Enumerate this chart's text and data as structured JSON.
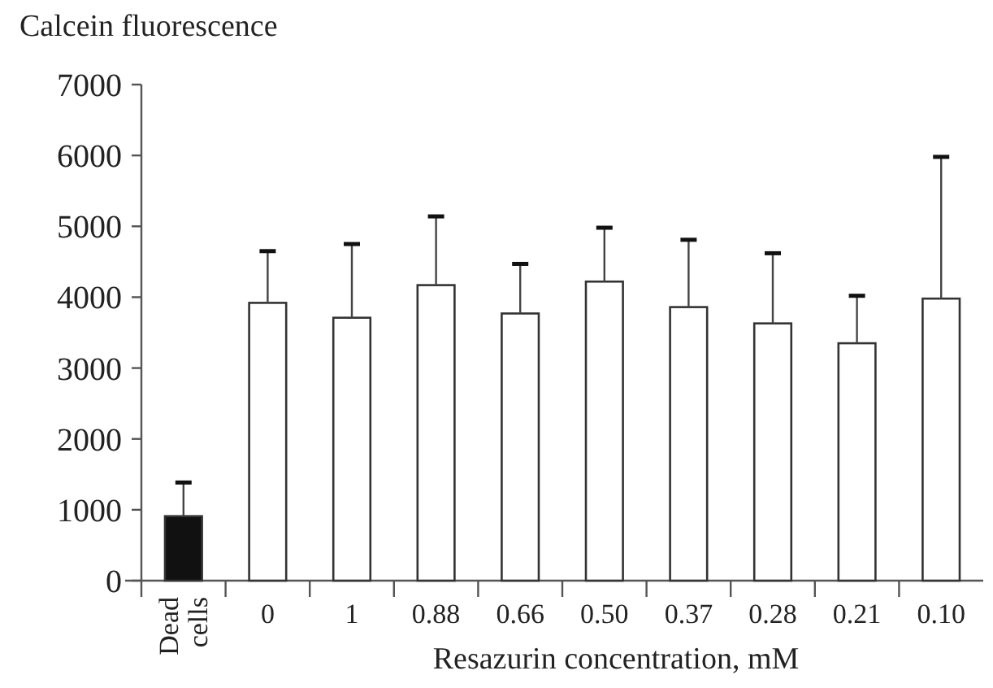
{
  "chart_data": {
    "type": "bar",
    "ylabel": "Calcein fluorescence",
    "xlabel": "Resazurin concentration, mM",
    "categories": [
      "Dead cells",
      "0",
      "1",
      "0.88",
      "0.66",
      "0.50",
      "0.37",
      "0.28",
      "0.21",
      "0.10"
    ],
    "values": [
      910,
      3920,
      3710,
      4170,
      3770,
      4220,
      3860,
      3630,
      3350,
      3980
    ],
    "colors": [
      "#111111",
      "#ffffff",
      "#ffffff",
      "#ffffff",
      "#ffffff",
      "#ffffff",
      "#ffffff",
      "#ffffff",
      "#ffffff",
      "#ffffff"
    ],
    "errors": [
      [
        910,
        1385
      ],
      [
        3920,
        4650
      ],
      [
        3710,
        4750
      ],
      [
        4170,
        5140
      ],
      [
        3770,
        4470
      ],
      [
        4220,
        4980
      ],
      [
        3860,
        4810
      ],
      [
        3630,
        4620
      ],
      [
        3350,
        4020
      ],
      [
        3980,
        5980
      ]
    ],
    "ylim": [
      0,
      7000
    ],
    "yticks": [
      0,
      1000,
      2000,
      3000,
      4000,
      5000,
      6000,
      7000
    ],
    "grid": false
  }
}
